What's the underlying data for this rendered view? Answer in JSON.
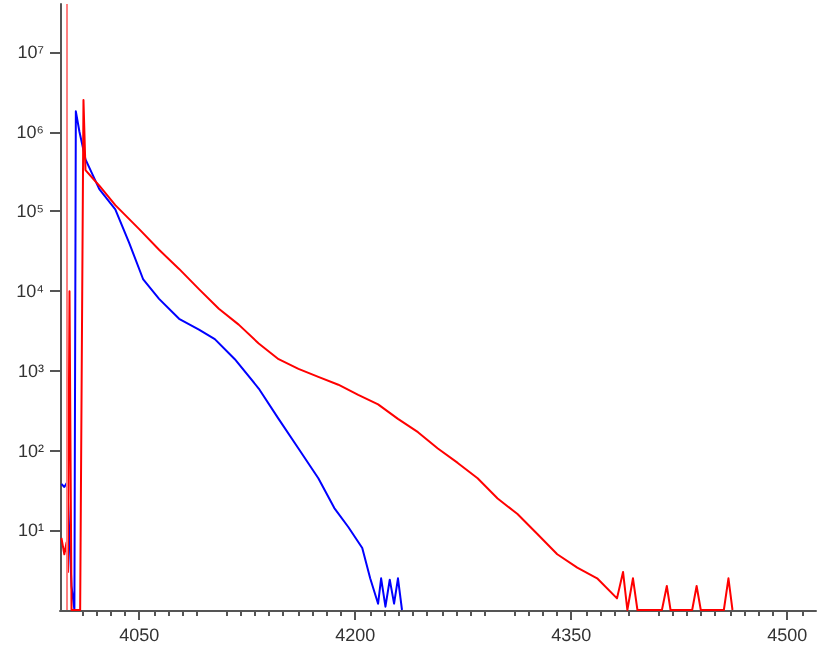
{
  "chart_data": {
    "type": "line",
    "log": "y",
    "grid": false,
    "marker": "none",
    "line_style": "solid",
    "xlim": [
      3995,
      4520
    ],
    "xticks": [
      4050,
      4200,
      4350,
      4500
    ],
    "ylim": [
      1,
      40000000
    ],
    "yticks": [
      {
        "value": 10,
        "label": "10¹"
      },
      {
        "value": 100,
        "label": "10²"
      },
      {
        "value": 1000,
        "label": "10³"
      },
      {
        "value": 10000,
        "label": "10⁴"
      },
      {
        "value": 100000,
        "label": "10⁵"
      },
      {
        "value": 1000000,
        "label": "10⁶"
      },
      {
        "value": 10000000,
        "label": "10⁷"
      }
    ],
    "ref_lines": [
      {
        "axis": "x",
        "value": 3999,
        "color": "#ff8080"
      }
    ],
    "series": [
      {
        "color": "#0000ff",
        "x": [
          3996,
          3998,
          4000,
          4003,
          4005,
          4006,
          4008.5,
          4012.7,
          4022.3,
          4033.4,
          4043.1,
          4052.8,
          4063.8,
          4077.7,
          4091.5,
          4102.5,
          4116.4,
          4133,
          4146.8,
          4160.6,
          4174.4,
          4185.5,
          4195.2,
          4204.9,
          4210.4,
          4215.9,
          4218,
          4221,
          4224,
          4227,
          4229.7,
          4232.5
        ],
        "values": [
          38,
          35,
          40,
          2,
          1,
          1800000,
          1000000,
          450000,
          190000,
          106000,
          40000,
          14000,
          8000,
          4500,
          3300,
          2500,
          1400,
          600,
          250,
          106,
          45,
          19,
          11,
          6,
          2.5,
          1.2,
          2.5,
          1.1,
          2.4,
          1.2,
          2.5,
          1
        ]
      },
      {
        "color": "#ff0000",
        "x": [
          3996,
          3998,
          3999.5,
          4000.5,
          4001.6,
          4003,
          4005,
          4009,
          4011.3,
          4012.7,
          4022.3,
          4033.4,
          4050,
          4063.8,
          4077.7,
          4091.5,
          4105.3,
          4119.1,
          4133,
          4146.8,
          4160.6,
          4174.4,
          4188.3,
          4202.1,
          4215.9,
          4229.7,
          4243.6,
          4257.4,
          4271.2,
          4285,
          4298.9,
          4312.7,
          4326.5,
          4340.3,
          4354.2,
          4368,
          4381.8,
          4386,
          4389,
          4392.9,
          4396,
          4413,
          4416.4,
          4419,
          4434,
          4437.1,
          4440,
          4456,
          4459.2,
          4462
        ],
        "values": [
          8,
          5,
          7,
          3,
          10000,
          1,
          1,
          1,
          2500000,
          330000,
          210000,
          120000,
          60000,
          33000,
          19000,
          10600,
          6000,
          3800,
          2200,
          1400,
          1060,
          840,
          670,
          500,
          380,
          250,
          170,
          106,
          70,
          45,
          25,
          16,
          9,
          5,
          3.4,
          2.5,
          1.4,
          3,
          1,
          2.5,
          1,
          1,
          2,
          1,
          1,
          2,
          1,
          1,
          2.5,
          1
        ]
      }
    ]
  }
}
